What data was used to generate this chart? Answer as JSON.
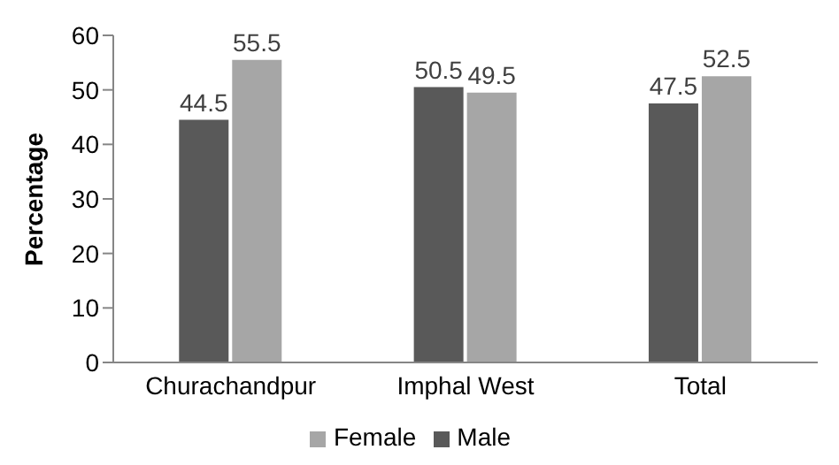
{
  "chart_data": {
    "type": "bar",
    "ylabel": "Percentage",
    "categories": [
      "Churachandpur",
      "Imphal West",
      "Total"
    ],
    "series": [
      {
        "name": "Male",
        "color": "#595959",
        "values": [
          44.5,
          50.5,
          47.5
        ]
      },
      {
        "name": "Female",
        "color": "#a6a6a6",
        "values": [
          55.5,
          49.5,
          52.5
        ]
      }
    ],
    "ylim": [
      0,
      60
    ],
    "yticks": [
      0,
      10,
      20,
      30,
      40,
      50,
      60
    ],
    "grid": false,
    "legend": "bottom",
    "data_labels": true
  }
}
